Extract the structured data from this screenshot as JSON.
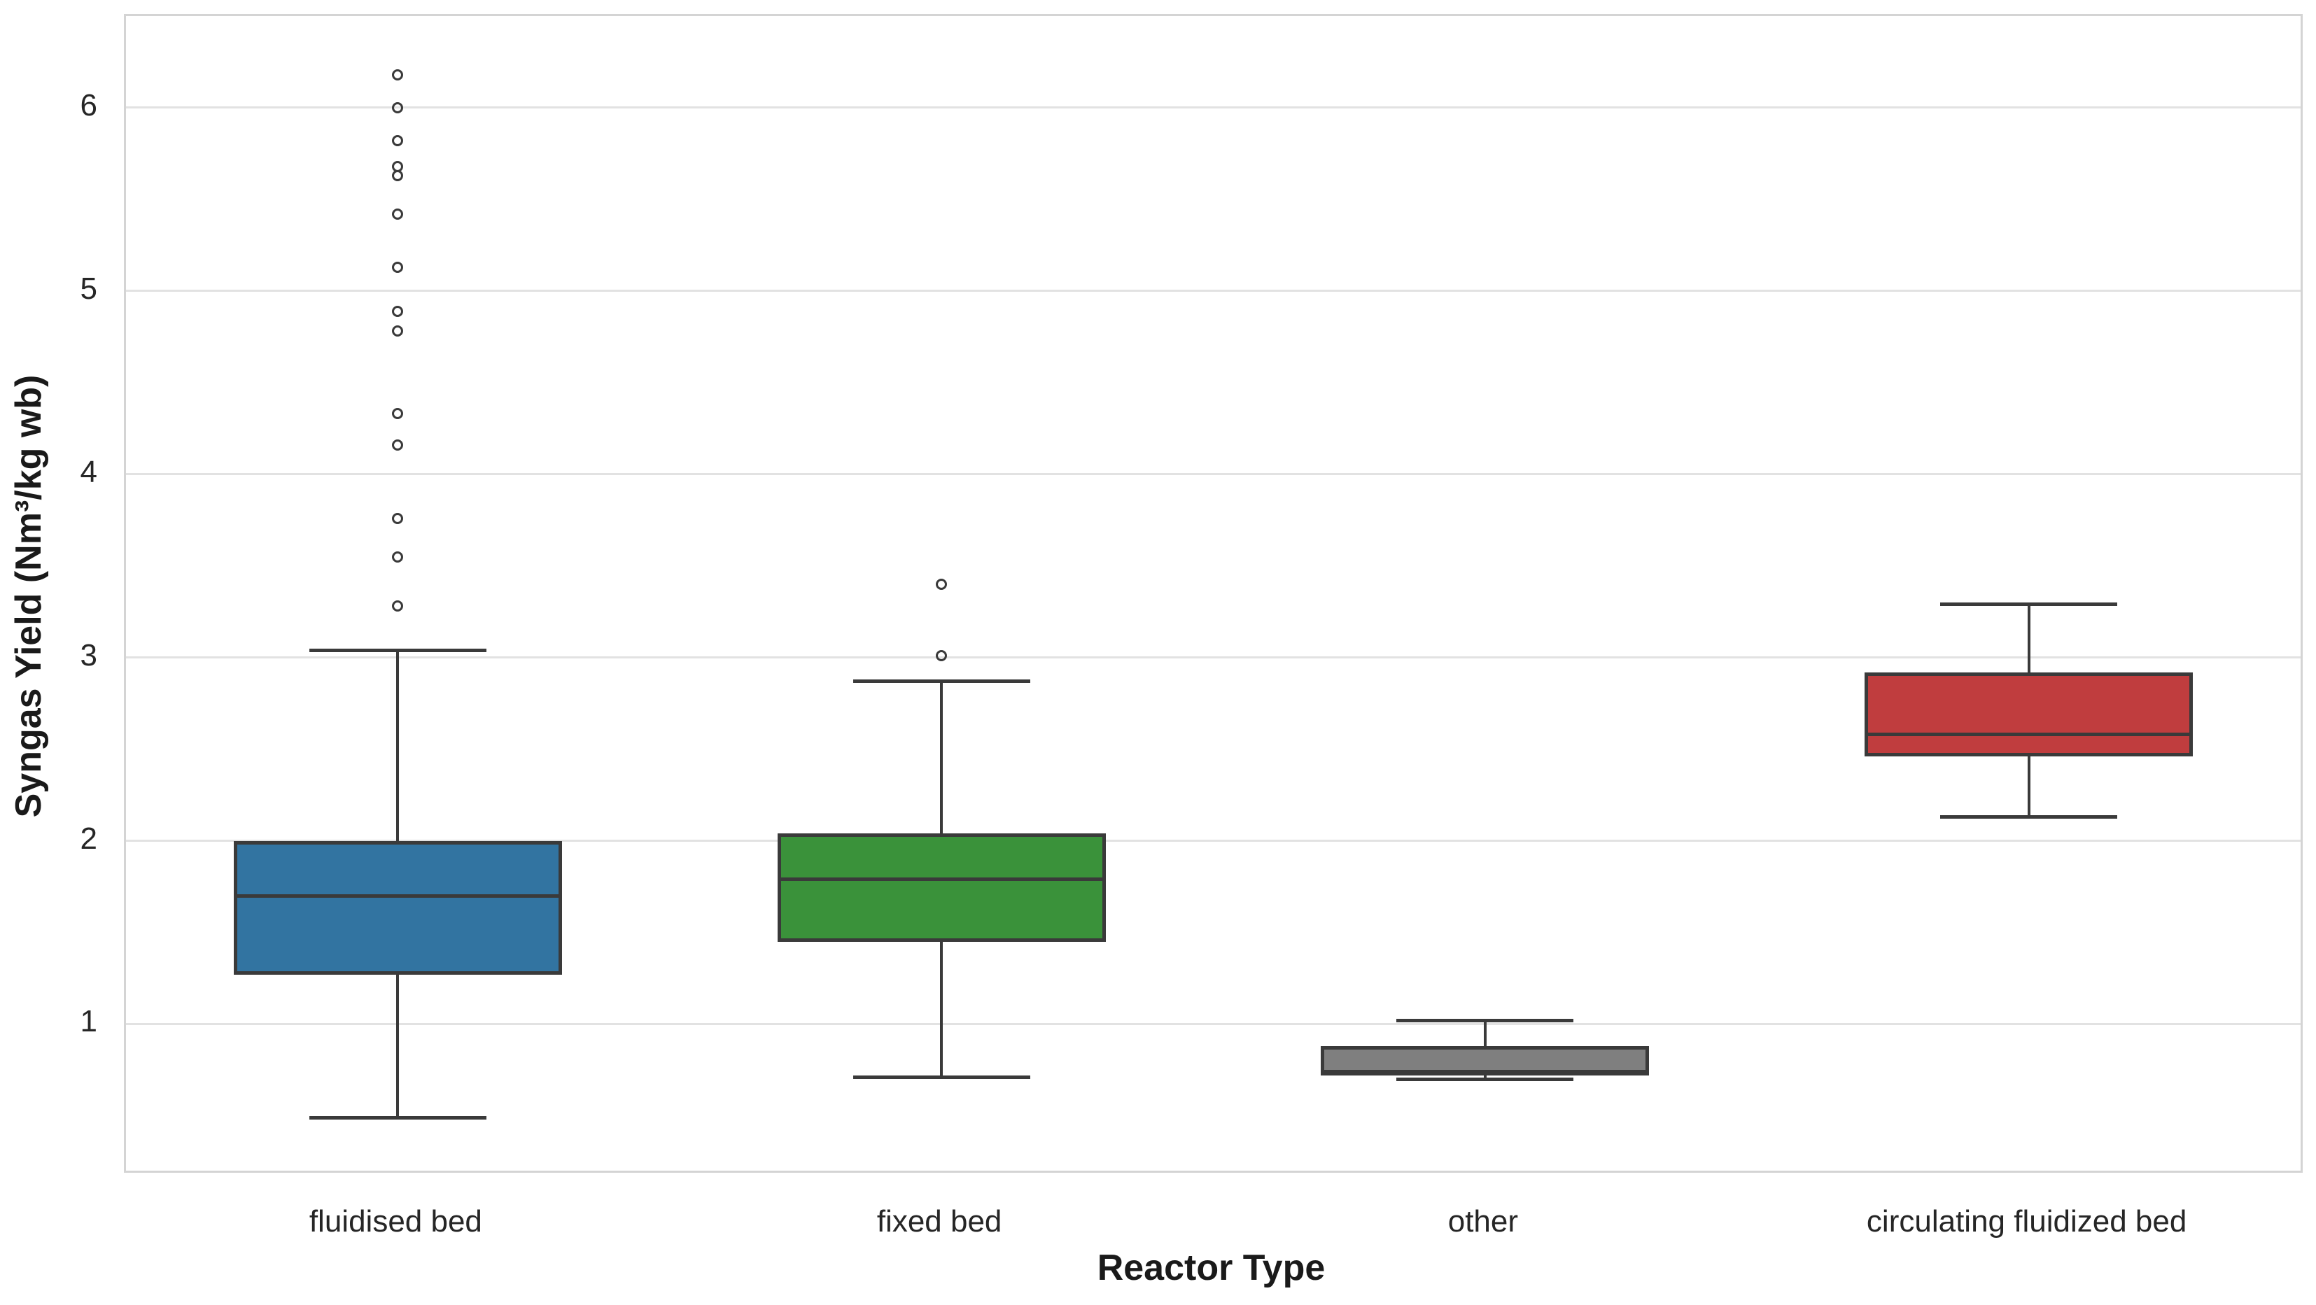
{
  "figure": {
    "background": "#ffffff",
    "grid_color": "#e2e2e2",
    "spine_color": "#d4d4d4",
    "line_color": "#3a3a3a"
  },
  "chart_data": {
    "type": "boxplot",
    "title": "",
    "xlabel": "Reactor Type",
    "ylabel": "Syngas Yield (Nm³/kg wb)",
    "ylim": [
      0.2,
      6.5
    ],
    "yticks": [
      1,
      2,
      3,
      4,
      5,
      6
    ],
    "grid": true,
    "legend": false,
    "categories": [
      "fluidised bed",
      "fixed bed",
      "other",
      "circulating fluidized bed"
    ],
    "series": [
      {
        "name": "fluidised bed",
        "color": "#3274a1",
        "whisker_low": 0.49,
        "q1": 1.27,
        "median": 1.7,
        "q3": 2.0,
        "whisker_high": 3.04,
        "outliers": [
          3.28,
          3.55,
          3.76,
          4.16,
          4.33,
          4.78,
          4.89,
          5.13,
          5.42,
          5.63,
          5.68,
          5.82,
          6.0,
          6.18
        ]
      },
      {
        "name": "fixed bed",
        "color": "#3a923a",
        "whisker_low": 0.71,
        "q1": 1.45,
        "median": 1.79,
        "q3": 2.04,
        "whisker_high": 2.87,
        "outliers": [
          3.01,
          3.4
        ]
      },
      {
        "name": "other",
        "color": "#7f7f7f",
        "whisker_low": 0.7,
        "q1": 0.72,
        "median": 0.74,
        "q3": 0.88,
        "whisker_high": 1.02,
        "outliers": []
      },
      {
        "name": "circulating fluidized bed",
        "color": "#c03d3e",
        "whisker_low": 2.13,
        "q1": 2.46,
        "median": 2.58,
        "q3": 2.92,
        "whisker_high": 3.29,
        "outliers": []
      }
    ]
  }
}
